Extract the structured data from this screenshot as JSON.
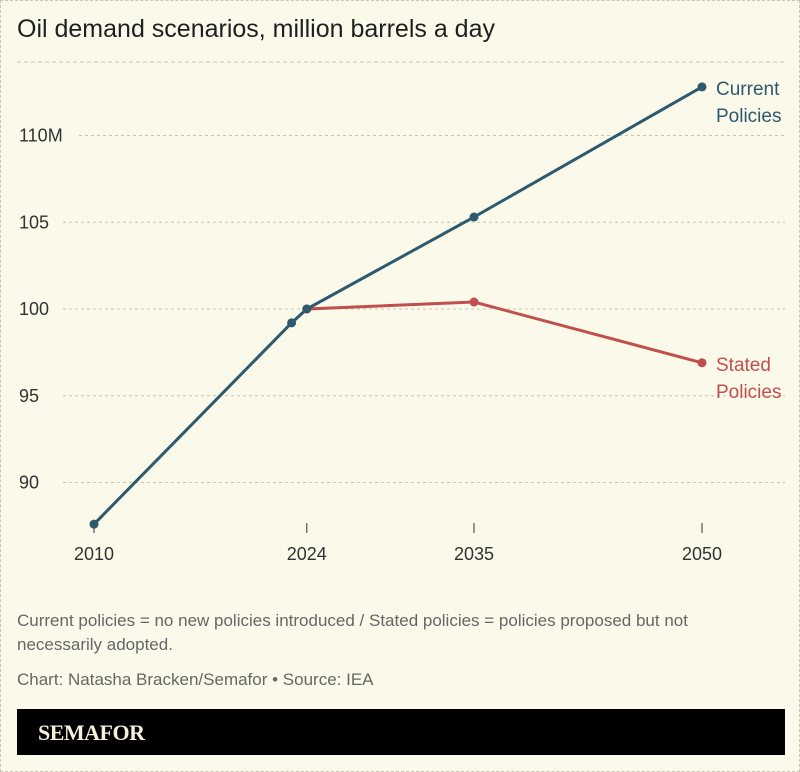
{
  "title": "Oil demand scenarios, million barrels a day",
  "note": "Current policies = no new policies introduced / Stated policies = policies proposed but not necessarily adopted.",
  "credit": "Chart: Natasha Bracken/Semafor • Source: IEA",
  "logo": "SEMAFOR",
  "chart_data": {
    "type": "line",
    "title": "Oil demand scenarios, million barrels a day",
    "xlim": [
      2010,
      2050
    ],
    "ylim": [
      87,
      114
    ],
    "x_ticks": [
      2010,
      2024,
      2035,
      2050
    ],
    "x_tick_labels": [
      "2010",
      "2024",
      "2035",
      "2050"
    ],
    "y_ticks": [
      90,
      95,
      100,
      105,
      110
    ],
    "y_tick_labels": [
      "90",
      "95",
      "100",
      "105",
      "110M"
    ],
    "grid": "horizontal dashed",
    "series": [
      {
        "name": "Current Policies",
        "label_lines": [
          "Current",
          "Policies"
        ],
        "color": "#2e5a6e",
        "points": [
          [
            2010,
            87.6
          ],
          [
            2023,
            99.2
          ],
          [
            2024,
            100.0
          ],
          [
            2035,
            105.3
          ],
          [
            2050,
            112.8
          ]
        ]
      },
      {
        "name": "Stated Policies",
        "label_lines": [
          "Stated",
          "Policies"
        ],
        "color": "#c0504d",
        "points": [
          [
            2024,
            100.0
          ],
          [
            2035,
            100.4
          ],
          [
            2050,
            96.9
          ]
        ]
      }
    ]
  }
}
